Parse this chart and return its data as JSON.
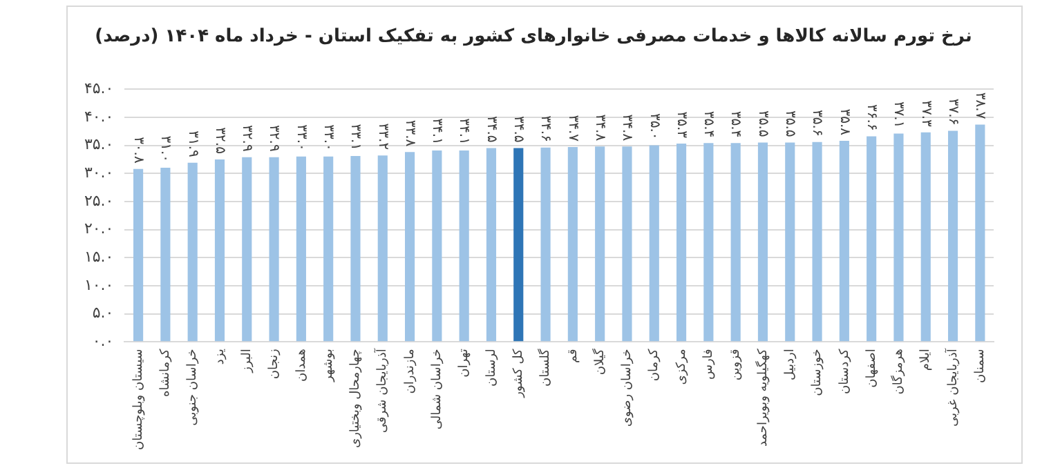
{
  "chart_data": {
    "type": "bar",
    "title": "نرخ تورم سالانه کالاها و خدمات مصرفی خانوارهای کشور به تفکیک استان - خرداد ماه ۱۴۰۴ (درصد)",
    "categories": [
      "سیستان وبلوچستان",
      "کرمانشاه",
      "خراسان جنوبی",
      "یزد",
      "البرز",
      "زنجان",
      "همدان",
      "بوشهر",
      "چهارمحال وبختیاری",
      "آذربایجان شرقی",
      "مازندران",
      "خراسان شمالی",
      "تهران",
      "لرستان",
      "کل کشور",
      "گلستان",
      "قم",
      "گیلان",
      "خراسان رضوی",
      "کرمان",
      "مرکزی",
      "فارس",
      "قزوین",
      "کهگیلویه وبویراحمد",
      "اردبیل",
      "خوزستان",
      "کردستان",
      "اصفهان",
      "هرمزگان",
      "ایلام",
      "آذربایجان غربی",
      "سمنان"
    ],
    "values": [
      30.8,
      31.0,
      31.9,
      32.5,
      32.9,
      32.9,
      33.0,
      33.0,
      33.1,
      33.2,
      33.8,
      34.1,
      34.1,
      34.5,
      34.5,
      34.6,
      34.7,
      34.8,
      34.8,
      35.0,
      35.3,
      35.4,
      35.4,
      35.5,
      35.5,
      35.6,
      35.8,
      36.6,
      37.1,
      37.3,
      37.6,
      38.7
    ],
    "value_labels": [
      "۳۰.۸",
      "۳۱.۰",
      "۳۱.۹",
      "۳۲.۵",
      "۳۲.۹",
      "۳۲.۹",
      "۳۳.۰",
      "۳۳.۰",
      "۳۳.۱",
      "۳۳.۲",
      "۳۳.۸",
      "۳۴.۱",
      "۳۴.۱",
      "۳۴.۵",
      "۳۴.۵",
      "۳۴.۶",
      "۳۴.۷",
      "۳۴.۸",
      "۳۴.۸",
      "۳۵.۰",
      "۳۵.۳",
      "۳۵.۴",
      "۳۵.۴",
      "۳۵.۵",
      "۳۵.۵",
      "۳۵.۶",
      "۳۵.۸",
      "۳۶.۶",
      "۳۷.۱",
      "۳۷.۳",
      "۳۷.۶",
      "۳۸.۷"
    ],
    "colors": [
      "#9dc3e6",
      "#9dc3e6",
      "#9dc3e6",
      "#9dc3e6",
      "#9dc3e6",
      "#9dc3e6",
      "#9dc3e6",
      "#9dc3e6",
      "#9dc3e6",
      "#9dc3e6",
      "#9dc3e6",
      "#9dc3e6",
      "#9dc3e6",
      "#9dc3e6",
      "#2e75b6",
      "#9dc3e6",
      "#9dc3e6",
      "#9dc3e6",
      "#9dc3e6",
      "#9dc3e6",
      "#9dc3e6",
      "#9dc3e6",
      "#9dc3e6",
      "#9dc3e6",
      "#9dc3e6",
      "#9dc3e6",
      "#9dc3e6",
      "#9dc3e6",
      "#9dc3e6",
      "#9dc3e6",
      "#9dc3e6",
      "#9dc3e6"
    ],
    "ylim": [
      0,
      45
    ],
    "yticks": [
      {
        "value": 0,
        "label": "۰.۰"
      },
      {
        "value": 5,
        "label": "۵.۰"
      },
      {
        "value": 10,
        "label": "۱۰.۰"
      },
      {
        "value": 15,
        "label": "۱۵.۰"
      },
      {
        "value": 20,
        "label": "۲۰.۰"
      },
      {
        "value": 25,
        "label": "۲۵.۰"
      },
      {
        "value": 30,
        "label": "۳۰.۰"
      },
      {
        "value": 35,
        "label": "۳۵.۰"
      },
      {
        "value": 40,
        "label": "۴۰.۰"
      },
      {
        "value": 45,
        "label": "۴۵.۰"
      }
    ],
    "grid": "y",
    "legend": false
  }
}
